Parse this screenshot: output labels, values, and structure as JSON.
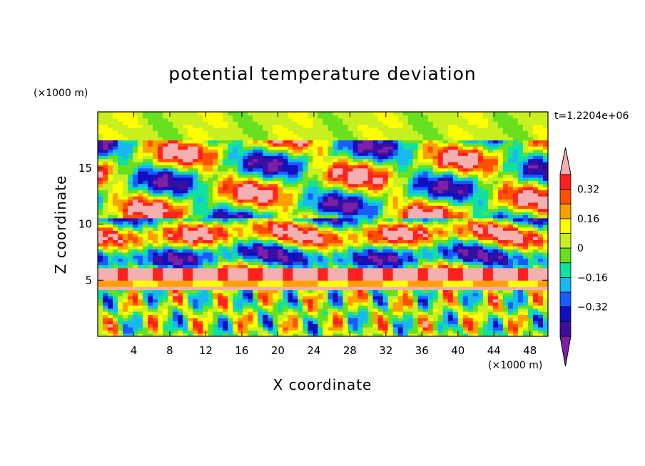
{
  "chart_data": {
    "type": "heatmap",
    "title": "potential temperature deviation",
    "xlabel": "X coordinate",
    "ylabel": "Z coordinate",
    "x_unit_label": "(×1000 m)",
    "y_unit_label": "(×1000 m)",
    "time_label": "t=1.2204e+06",
    "xlim": [
      0,
      50
    ],
    "ylim": [
      0,
      20
    ],
    "x_ticks": [
      4,
      8,
      12,
      16,
      20,
      24,
      28,
      32,
      36,
      40,
      44,
      48
    ],
    "y_ticks": [
      5,
      10,
      15
    ],
    "colorbar": {
      "levels": [
        -0.48,
        -0.4,
        -0.32,
        -0.24,
        -0.16,
        -0.08,
        0,
        0.08,
        0.16,
        0.24,
        0.32,
        0.4
      ],
      "tick_values": [
        -0.32,
        -0.16,
        0,
        0.16,
        0.32
      ],
      "tick_labels": [
        "−0.32",
        "−0.16",
        "0",
        "0.16",
        "0.32"
      ],
      "colors": [
        "#7d1fa8",
        "#3a0fa0",
        "#1010c0",
        "#1a5cff",
        "#19b8f0",
        "#10e0a0",
        "#68e020",
        "#c8f020",
        "#ffff00",
        "#ffa000",
        "#ff5000",
        "#ff2020",
        "#f4b0b0"
      ],
      "extend": "both"
    }
  }
}
